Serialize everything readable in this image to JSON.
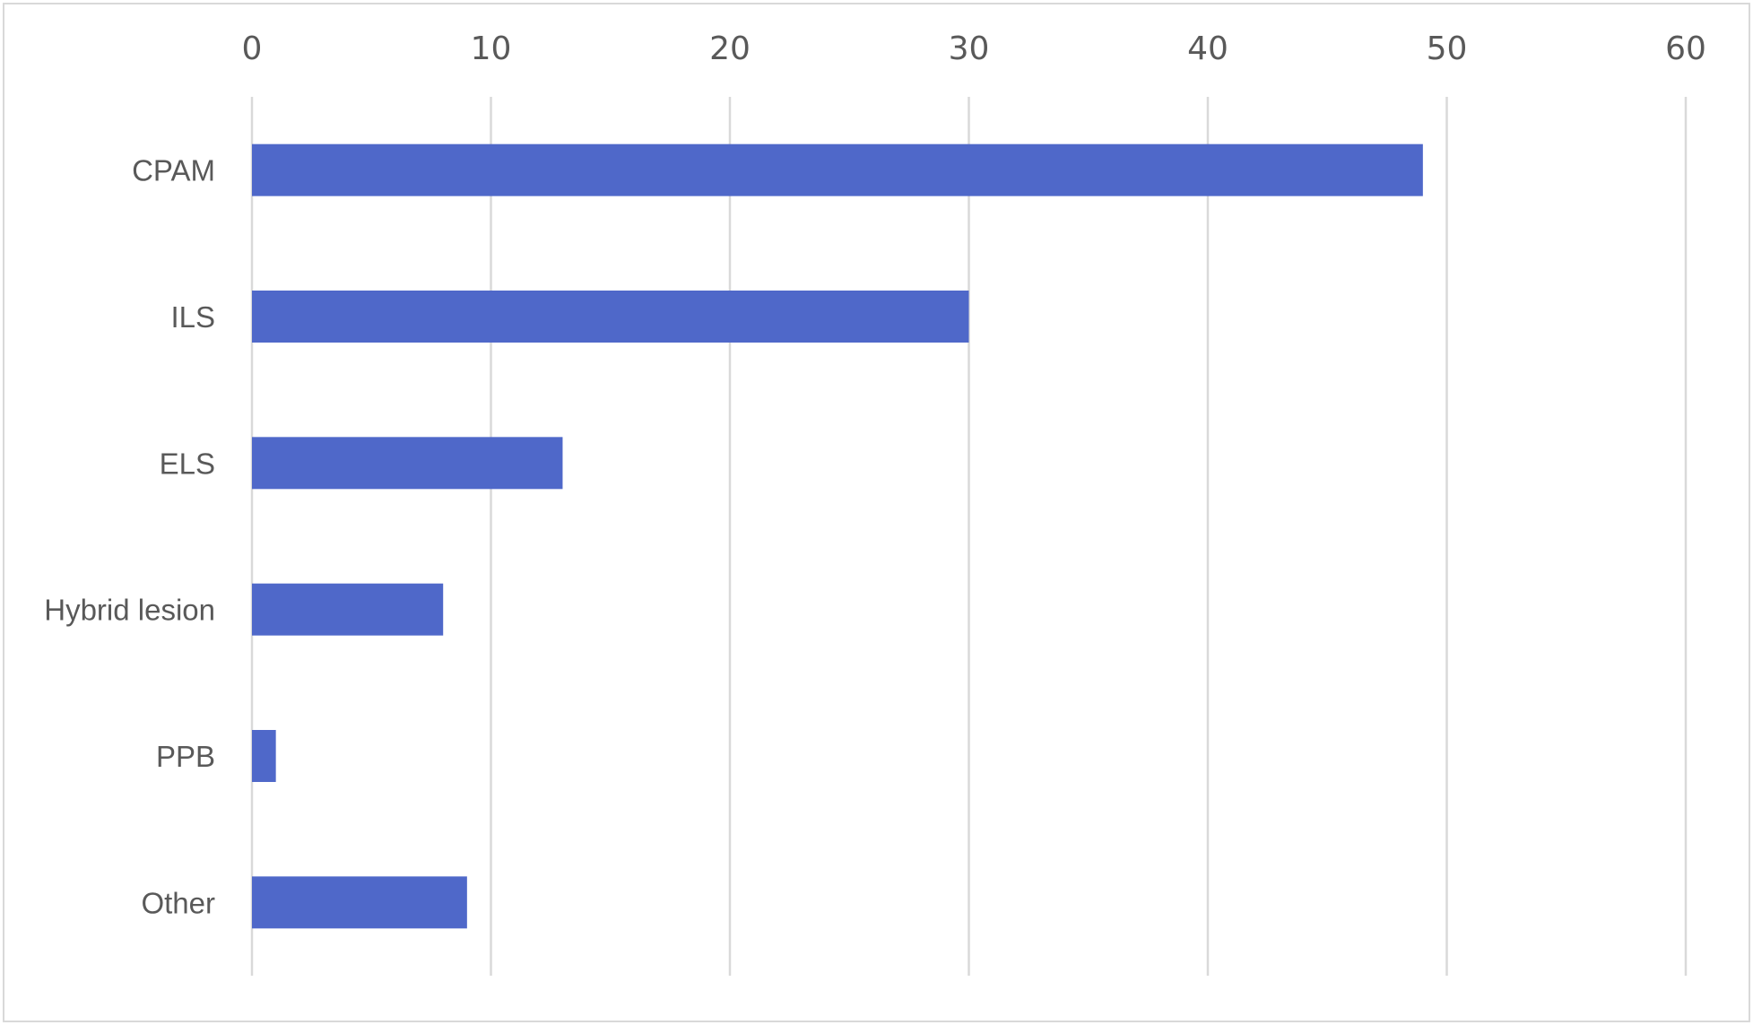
{
  "chart_data": {
    "type": "bar",
    "orientation": "horizontal",
    "categories": [
      "CPAM",
      "ILS",
      "ELS",
      "Hybrid lesion",
      "PPB",
      "Other"
    ],
    "values": [
      49,
      30,
      13,
      8,
      1,
      9
    ],
    "xlim": [
      0,
      60
    ],
    "x_ticks": [
      0,
      10,
      20,
      30,
      40,
      50,
      60
    ],
    "x_tick_labels": [
      "0",
      "10",
      "20",
      "30",
      "40",
      "50",
      "60"
    ],
    "x_axis_position": "top",
    "grid": true,
    "legend": "none",
    "title": "",
    "xlabel": "",
    "ylabel": "",
    "colors": {
      "bar": "#4F68C9",
      "grid": "#D9D9D9",
      "text": "#595959",
      "frame": "#D9D9D9"
    }
  }
}
